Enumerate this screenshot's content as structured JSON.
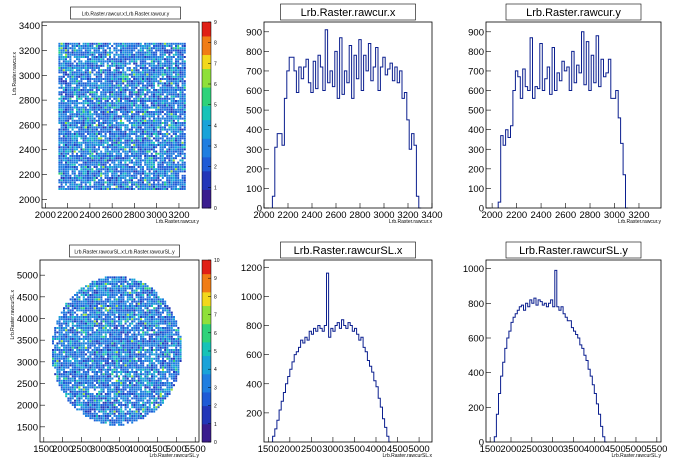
{
  "chart_data": [
    {
      "type": "heatmap",
      "title": "Lrb.Raster.rawcur.x:Lrb.Raster.rawcur.y",
      "xlabel": "Lrb.Raster.rawcur.y",
      "ylabel": "Lrb.Raster.rawcur.x",
      "x_ticks": [
        "2000",
        "2200",
        "2400",
        "2600",
        "2800",
        "3000",
        "3200"
      ],
      "y_ticks": [
        "2000",
        "2200",
        "2400",
        "2600",
        "2800",
        "3000",
        "3200",
        "3400"
      ],
      "xlim": [
        1970,
        3380
      ],
      "ylim": [
        1930,
        3430
      ],
      "shape": "rectangle",
      "region": {
        "x": [
          2100,
          3260
        ],
        "y": [
          2080,
          3270
        ]
      },
      "z_ticks": [
        "0",
        "1",
        "2",
        "3",
        "4",
        "5",
        "6",
        "7",
        "8",
        "9"
      ],
      "zlim": [
        0,
        9
      ]
    },
    {
      "type": "histogram",
      "title": "Lrb.Raster.rawcur.x",
      "xlabel": "Lrb.Raster.rawcur.x",
      "x_ticks": [
        "2000",
        "2200",
        "2400",
        "2600",
        "2800",
        "3000",
        "3200",
        "3400"
      ],
      "y_ticks": [
        "0",
        "100",
        "200",
        "300",
        "400",
        "500",
        "600",
        "700",
        "800",
        "900"
      ],
      "xlim": [
        2000,
        3400
      ],
      "ylim": [
        0,
        950
      ],
      "bin_start": 2070,
      "bin_width": 20,
      "values": [
        60,
        310,
        380,
        380,
        320,
        560,
        700,
        770,
        770,
        700,
        590,
        720,
        660,
        720,
        760,
        640,
        590,
        750,
        610,
        780,
        720,
        600,
        910,
        640,
        700,
        620,
        800,
        560,
        870,
        580,
        700,
        640,
        830,
        560,
        780,
        660,
        860,
        600,
        780,
        700,
        840,
        650,
        720,
        820,
        600,
        720,
        770,
        680,
        710,
        740,
        650,
        720,
        640,
        700,
        560,
        590,
        450,
        300,
        380,
        320,
        60,
        0
      ]
    },
    {
      "type": "histogram",
      "title": "Lrb.Raster.rawcur.y",
      "xlabel": "Lrb.Raster.rawcur.y",
      "x_ticks": [
        "2000",
        "2200",
        "2400",
        "2600",
        "2800",
        "3000",
        "3200"
      ],
      "y_ticks": [
        "0",
        "100",
        "200",
        "300",
        "400",
        "500",
        "600",
        "700",
        "800",
        "900"
      ],
      "xlim": [
        1950,
        3380
      ],
      "ylim": [
        0,
        950
      ],
      "bin_start": 2050,
      "bin_width": 20,
      "values": [
        30,
        370,
        320,
        400,
        360,
        420,
        600,
        700,
        670,
        560,
        710,
        620,
        600,
        870,
        560,
        620,
        610,
        840,
        600,
        660,
        720,
        580,
        820,
        600,
        690,
        650,
        750,
        700,
        720,
        600,
        800,
        640,
        730,
        690,
        900,
        630,
        850,
        600,
        780,
        640,
        880,
        620,
        760,
        670,
        690,
        760,
        560,
        560,
        600,
        460,
        330,
        170,
        0
      ]
    },
    {
      "type": "heatmap",
      "title": "Lrb.Raster.rawcurSL.x:Lrb.Raster.rawcurSL.y",
      "xlabel": "Lrb.Raster.rawcurSL.y",
      "ylabel": "Lrb.Raster.rawcurSL.x",
      "x_ticks": [
        "1500",
        "2000",
        "2500",
        "3000",
        "3500",
        "4000",
        "4500",
        "5000",
        "5500"
      ],
      "y_ticks": [
        "1500",
        "2000",
        "2500",
        "3000",
        "3500",
        "4000",
        "4500",
        "5000"
      ],
      "xlim": [
        1400,
        5600
      ],
      "ylim": [
        1150,
        5350
      ],
      "shape": "circle",
      "region": {
        "cx": 3400,
        "cy": 3280,
        "r": 1720
      },
      "z_ticks": [
        "0",
        "1",
        "2",
        "3",
        "4",
        "5",
        "6",
        "7",
        "8",
        "9",
        "10"
      ],
      "zlim": [
        0,
        10
      ]
    },
    {
      "type": "histogram",
      "title": "Lrb.Raster.rawcurSL.x",
      "xlabel": "Lrb.Raster.rawcurSL.x",
      "x_ticks": [
        "1500",
        "2000",
        "2500",
        "3000",
        "3500",
        "4000",
        "4500",
        "5000"
      ],
      "y_ticks": [
        "200",
        "400",
        "600",
        "800",
        "1000",
        "1200"
      ],
      "xlim": [
        1400,
        5300
      ],
      "ylim": [
        0,
        1250
      ],
      "bin_start": 1600,
      "bin_width": 50,
      "values": [
        40,
        90,
        150,
        220,
        280,
        340,
        400,
        450,
        500,
        550,
        600,
        620,
        650,
        700,
        680,
        720,
        700,
        760,
        740,
        780,
        760,
        800,
        780,
        760,
        800,
        1160,
        720,
        780,
        760,
        800,
        820,
        780,
        840,
        800,
        780,
        820,
        800,
        760,
        780,
        740,
        700,
        720,
        650,
        620,
        560,
        520,
        480,
        420,
        380,
        300,
        240,
        160,
        100,
        40,
        0
      ]
    },
    {
      "type": "histogram",
      "title": "Lrb.Raster.rawcurSL.y",
      "xlabel": "Lrb.Raster.rawcurSL.y",
      "x_ticks": [
        "1500",
        "2000",
        "2500",
        "3000",
        "3500",
        "4000",
        "4500",
        "5000",
        "5500"
      ],
      "y_ticks": [
        "0",
        "200",
        "400",
        "600",
        "800",
        "1000"
      ],
      "xlim": [
        1400,
        5600
      ],
      "ylim": [
        0,
        1050
      ],
      "bin_start": 1600,
      "bin_width": 50,
      "values": [
        30,
        160,
        280,
        380,
        460,
        540,
        600,
        640,
        690,
        720,
        740,
        760,
        780,
        790,
        760,
        800,
        780,
        820,
        800,
        830,
        790,
        820,
        810,
        790,
        800,
        780,
        800,
        820,
        780,
        990,
        780,
        760,
        780,
        740,
        720,
        700,
        700,
        660,
        640,
        620,
        600,
        560,
        540,
        500,
        470,
        420,
        380,
        330,
        280,
        220,
        160,
        90,
        30,
        0
      ]
    }
  ]
}
